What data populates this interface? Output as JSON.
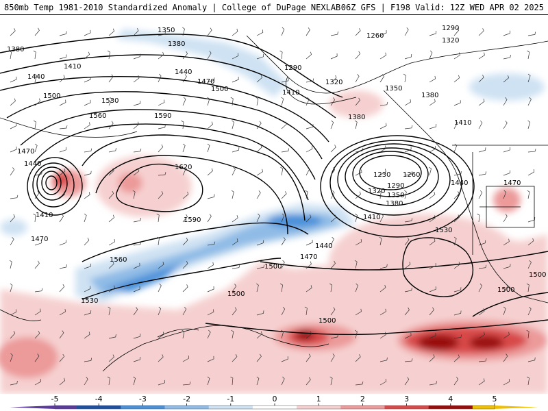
{
  "header": {
    "title_left": "850mb Temp 1981-2010 Standardized Anomaly | College of DuPage NEXLAB",
    "title_right": "06Z GFS | F198 Valid: 12Z WED APR 02 2025"
  },
  "colors": {
    "neg_5": "#5a3a9a",
    "neg_4": "#1f4fa0",
    "neg_3": "#4a90d9",
    "neg_2": "#8fbbe6",
    "neg_1": "#cfe2f3",
    "zero": "#ffffff",
    "pos_1": "#f6d0d0",
    "pos_2": "#ec9a9a",
    "pos_3": "#d84a4a",
    "pos_4": "#9a0d0d",
    "pos_5": "#f0c000"
  },
  "contour_labels": [
    "1230",
    "1260",
    "1290",
    "1320",
    "1350",
    "1380",
    "1410",
    "1440",
    "1470",
    "1500",
    "1530",
    "1560",
    "1590",
    "1620"
  ],
  "legend": {
    "ticks": [
      "-5",
      "-4",
      "-3",
      "-2",
      "-1",
      "0",
      "1",
      "2",
      "3",
      "4",
      "5"
    ]
  }
}
